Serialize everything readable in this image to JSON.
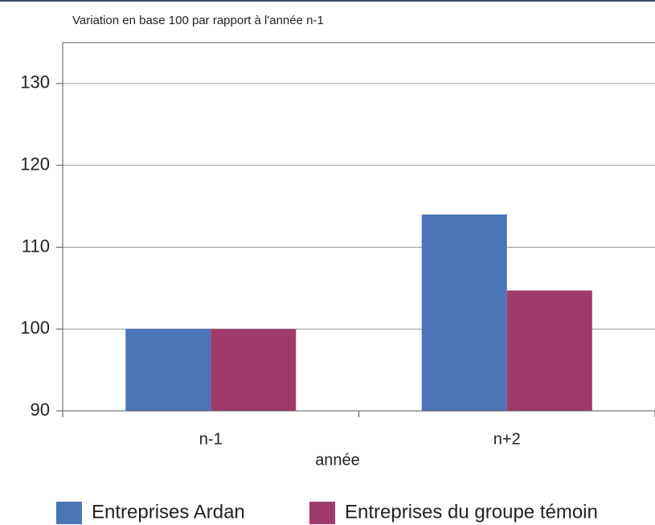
{
  "chart_data": {
    "type": "bar",
    "title": "Variation en base 100 par rapport à l'année n-1",
    "x_label": "année",
    "categories": [
      "n-1",
      "n+2"
    ],
    "series": [
      {
        "name": "Entreprises Ardan",
        "color": "#4a76b7",
        "values": [
          100,
          114
        ]
      },
      {
        "name": "Entreprises du groupe témoin",
        "color": "#a03a6a",
        "values": [
          100,
          104.7
        ]
      }
    ],
    "ylim": [
      90,
      135
    ],
    "yticks": [
      90,
      100,
      110,
      120,
      130
    ],
    "grid": true,
    "legend": "bottom"
  }
}
